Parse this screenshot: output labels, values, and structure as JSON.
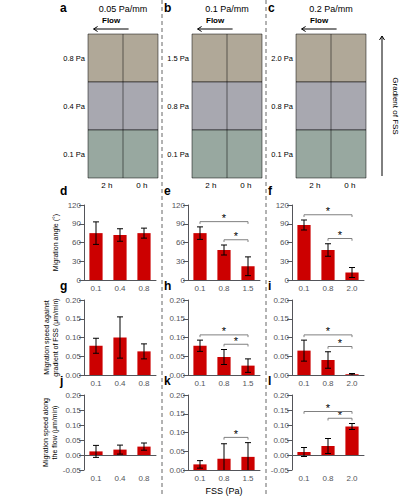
{
  "chart_data": [
    {
      "type": "bar",
      "title": "d",
      "categories": [
        "0.1",
        "0.4",
        "0.8"
      ],
      "values": [
        75,
        72,
        75
      ],
      "errors": [
        18,
        10,
        8
      ],
      "color": "#CC0000",
      "ylabel": "Migration angle (°)",
      "ylim": [
        0,
        120
      ],
      "yticks": [
        0,
        30,
        60,
        90,
        120
      ],
      "grid": false,
      "image_panel": {
        "title": "a",
        "heading": "0.05 Pa/mm",
        "arrow_label": "Flow",
        "row_labels": [
          "0.8 Pa",
          "0.4 Pa",
          "0.1 Pa"
        ],
        "time_labels": [
          "2 h",
          "0 h"
        ]
      }
    },
    {
      "type": "bar",
      "title": "e",
      "categories": [
        "0.1",
        "0.8",
        "1.5"
      ],
      "values": [
        75,
        48,
        22
      ],
      "errors": [
        10,
        8,
        15
      ],
      "color": "#CC0000",
      "ylim": [
        0,
        120
      ],
      "yticks": [
        0,
        30,
        60,
        90,
        120
      ],
      "grid": false,
      "significance": [
        {
          "categories": [
            "0.1",
            "1.5"
          ],
          "label": "*"
        },
        {
          "categories": [
            "0.8",
            "1.5"
          ],
          "label": "*"
        }
      ],
      "image_panel": {
        "title": "b",
        "heading": "0.1 Pa/mm",
        "arrow_label": "Flow",
        "row_labels": [
          "1.5 Pa",
          "0.8 Pa",
          "0.1 Pa"
        ],
        "time_labels": [
          "2 h",
          "0 h"
        ]
      }
    },
    {
      "type": "bar",
      "title": "f",
      "categories": [
        "0.1",
        "0.8",
        "2.0"
      ],
      "values": [
        88,
        48,
        12
      ],
      "errors": [
        8,
        10,
        8
      ],
      "color": "#CC0000",
      "ylim": [
        0,
        120
      ],
      "yticks": [
        0,
        30,
        60,
        90,
        120
      ],
      "grid": false,
      "significance": [
        {
          "categories": [
            "0.1",
            "2.0"
          ],
          "label": "*"
        },
        {
          "categories": [
            "0.8",
            "2.0"
          ],
          "label": "*"
        }
      ],
      "image_panel": {
        "title": "c",
        "heading": "0.2 Pa/mm",
        "arrow_label": "Flow",
        "row_labels": [
          "2.0 Pa",
          "0.8 Pa",
          "0.1 Pa"
        ],
        "time_labels": [
          "2 h",
          "0 h"
        ],
        "side_label": "Gradient of FSS"
      }
    },
    {
      "type": "bar",
      "title": "g",
      "categories": [
        "0.1",
        "0.4",
        "0.8"
      ],
      "values": [
        0.078,
        0.1,
        0.063
      ],
      "errors": [
        0.02,
        0.055,
        0.02
      ],
      "color": "#CC0000",
      "ylabel": "Migration speed against\ngradient of FSS (μm/min)",
      "ylim": [
        0,
        0.2
      ],
      "yticks": [
        {
          "value": 0,
          "label": "0.00"
        },
        0.05,
        {
          "value": 0.1,
          "label": "0.10"
        },
        0.15,
        {
          "value": 0.2,
          "label": "0.20"
        }
      ],
      "grid": false
    },
    {
      "type": "bar",
      "title": "h",
      "categories": [
        "0.1",
        "0.8",
        "1.5"
      ],
      "values": [
        0.078,
        0.048,
        0.025
      ],
      "errors": [
        0.015,
        0.02,
        0.018
      ],
      "color": "#CC0000",
      "ylim": [
        0,
        0.2
      ],
      "yticks": [
        {
          "value": 0,
          "label": "0.00"
        },
        0.05,
        {
          "value": 0.1,
          "label": "0.10"
        },
        0.15,
        {
          "value": 0.2,
          "label": "0.20"
        }
      ],
      "grid": false,
      "significance": [
        {
          "categories": [
            "0.1",
            "1.5"
          ],
          "label": "*"
        },
        {
          "categories": [
            "0.8",
            "1.5"
          ],
          "label": "*"
        }
      ]
    },
    {
      "type": "bar",
      "title": "i",
      "categories": [
        "0.1",
        "0.8",
        "2.0"
      ],
      "values": [
        0.065,
        0.04,
        0.002
      ],
      "errors": [
        0.028,
        0.022,
        0.002
      ],
      "color": "#CC0000",
      "ylim": [
        0,
        0.2
      ],
      "yticks": [
        {
          "value": 0,
          "label": "0.00"
        },
        0.05,
        {
          "value": 0.1,
          "label": "0.10"
        },
        0.15,
        {
          "value": 0.2,
          "label": "0.20"
        }
      ],
      "grid": false,
      "significance": [
        {
          "categories": [
            "0.1",
            "2.0"
          ],
          "label": "*"
        },
        {
          "categories": [
            "0.8",
            "2.0"
          ],
          "label": "*"
        }
      ]
    },
    {
      "type": "bar",
      "title": "j",
      "categories": [
        "0.1",
        "0.4",
        "0.8"
      ],
      "values": [
        0.012,
        0.018,
        0.028
      ],
      "errors": [
        0.02,
        0.015,
        0.012
      ],
      "color": "#CC0000",
      "ylabel": "Migration speed along\nthe flow (μm/min)",
      "ylim": [
        -0.05,
        0.2
      ],
      "yticks": [
        -0.05,
        {
          "value": 0,
          "label": "0.00"
        },
        0.05,
        {
          "value": 0.1,
          "label": "0.10"
        },
        0.15,
        {
          "value": 0.2,
          "label": "0.20"
        }
      ],
      "grid": false
    },
    {
      "type": "bar",
      "title": "k",
      "categories": [
        "0.1",
        "0.8",
        "1.5"
      ],
      "values": [
        0.015,
        0.03,
        0.035
      ],
      "errors": [
        0.01,
        0.04,
        0.038
      ],
      "color": "#CC0000",
      "xlabel": "FSS (Pa)",
      "ylim": [
        0,
        0.2
      ],
      "yticks": [
        {
          "value": 0,
          "label": "0.00"
        },
        0.05,
        {
          "value": 0.1,
          "label": "0.10"
        },
        0.15,
        {
          "value": 0.2,
          "label": "0.20"
        }
      ],
      "grid": false,
      "significance": [
        {
          "categories": [
            "0.8",
            "1.5"
          ],
          "label": "*"
        }
      ]
    },
    {
      "type": "bar",
      "title": "l",
      "categories": [
        "0.1",
        "0.8",
        "2.0"
      ],
      "values": [
        0.01,
        0.03,
        0.095
      ],
      "errors": [
        0.015,
        0.025,
        0.01
      ],
      "color": "#CC0000",
      "ylim": [
        -0.05,
        0.2
      ],
      "yticks": [
        -0.05,
        {
          "value": 0,
          "label": "0.00"
        },
        0.05,
        {
          "value": 0.1,
          "label": "0.10"
        },
        0.15,
        {
          "value": 0.2,
          "label": "0.20"
        }
      ],
      "grid": false,
      "significance": [
        {
          "categories": [
            "0.1",
            "2.0"
          ],
          "label": "*"
        },
        {
          "categories": [
            "0.8",
            "2.0"
          ],
          "label": "*"
        }
      ]
    }
  ]
}
